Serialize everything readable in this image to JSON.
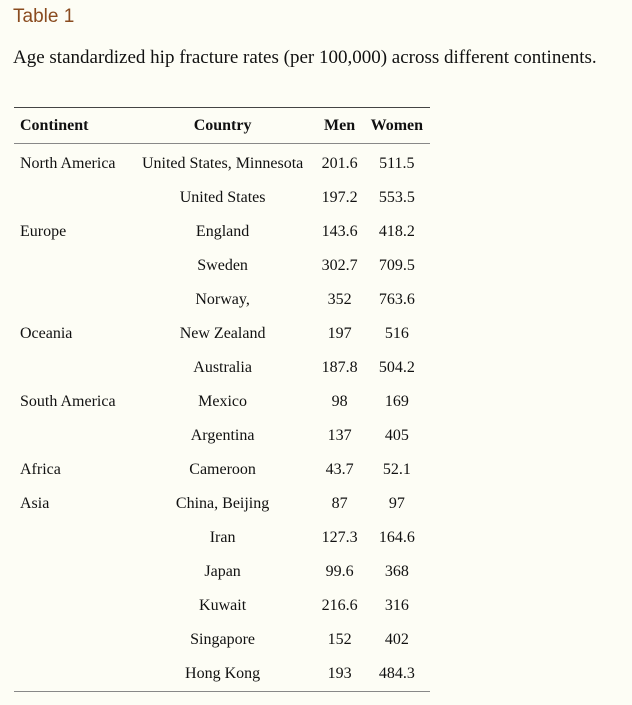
{
  "table_label": "Table 1",
  "caption": "Age standardized hip fracture rates (per 100,000) across different continents.",
  "headers": [
    "Continent",
    "Country",
    "Men",
    "Women"
  ],
  "rows": [
    [
      "North America",
      "United States, Minnesota",
      "201.6",
      "511.5"
    ],
    [
      "",
      "United States",
      "197.2",
      "553.5"
    ],
    [
      "Europe",
      "England",
      "143.6",
      "418.2"
    ],
    [
      "",
      "Sweden",
      "302.7",
      "709.5"
    ],
    [
      "",
      "Norway,",
      "352",
      "763.6"
    ],
    [
      "Oceania",
      "New Zealand",
      "197",
      "516"
    ],
    [
      "",
      "Australia",
      "187.8",
      "504.2"
    ],
    [
      "South America",
      "Mexico",
      "98",
      "169"
    ],
    [
      "",
      "Argentina",
      "137",
      "405"
    ],
    [
      "Africa",
      "Cameroon",
      "43.7",
      "52.1"
    ],
    [
      "Asia",
      "China, Beijing",
      "87",
      "97"
    ],
    [
      "",
      "Iran",
      "127.3",
      "164.6"
    ],
    [
      "",
      "Japan",
      "99.6",
      "368"
    ],
    [
      "",
      "Kuwait",
      "216.6",
      "316"
    ],
    [
      "",
      "Singapore",
      "152",
      "402"
    ],
    [
      "",
      "Hong Kong",
      "193",
      "484.3"
    ]
  ],
  "colors": {
    "background": "#fdfdf5",
    "label": "#8a4b1f",
    "text": "#111111"
  }
}
